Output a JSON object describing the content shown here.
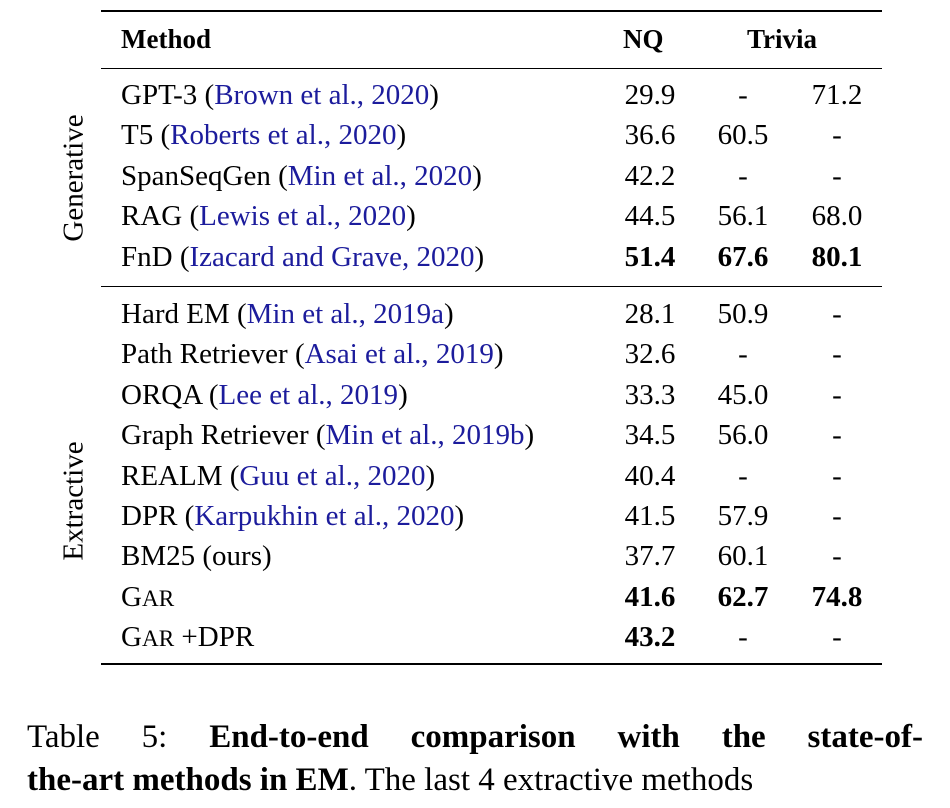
{
  "table": {
    "header": {
      "method": "Method",
      "nq": "NQ",
      "trivia": "Trivia"
    },
    "groups": {
      "generative": "Generative",
      "extractive": "Extractive"
    },
    "generative_rows": [
      {
        "name": "GPT-3 (",
        "cite": "Brown et al., 2020",
        "close": ")",
        "nq": "29.9",
        "trivia_open": "-",
        "trivia_wiki": "71.2"
      },
      {
        "name": "T5 (",
        "cite": "Roberts et al., 2020",
        "close": ")",
        "nq": "36.6",
        "trivia_open": "60.5",
        "trivia_wiki": "-"
      },
      {
        "name": "SpanSeqGen (",
        "cite": "Min et al., 2020",
        "close": ")",
        "nq": "42.2",
        "trivia_open": "-",
        "trivia_wiki": "-"
      },
      {
        "name": "RAG (",
        "cite": "Lewis et al., 2020",
        "close": ")",
        "nq": "44.5",
        "trivia_open": "56.1",
        "trivia_wiki": "68.0"
      },
      {
        "name": "FnD (",
        "cite": "Izacard and Grave, 2020",
        "close": ")",
        "nq": "51.4",
        "trivia_open": "67.6",
        "trivia_wiki": "80.1"
      }
    ],
    "extractive_rows": [
      {
        "name": "Hard EM (",
        "cite": "Min et al., 2019a",
        "close": ")",
        "nq": "28.1",
        "trivia_open": "50.9",
        "trivia_wiki": "-"
      },
      {
        "name": "Path Retriever (",
        "cite": "Asai et al., 2019",
        "close": ")",
        "nq": "32.6",
        "trivia_open": "-",
        "trivia_wiki": "-"
      },
      {
        "name": "ORQA (",
        "cite": "Lee et al., 2019",
        "close": ")",
        "nq": "33.3",
        "trivia_open": "45.0",
        "trivia_wiki": "-"
      },
      {
        "name": "Graph Retriever (",
        "cite": "Min et al., 2019b",
        "close": ")",
        "nq": "34.5",
        "trivia_open": "56.0",
        "trivia_wiki": "-"
      },
      {
        "name": "REALM (",
        "cite": "Guu et al., 2020",
        "close": ")",
        "nq": "40.4",
        "trivia_open": "-",
        "trivia_wiki": "-"
      },
      {
        "name": "DPR (",
        "cite": "Karpukhin et al., 2020",
        "close": ")",
        "nq": "41.5",
        "trivia_open": "57.9",
        "trivia_wiki": "-"
      },
      {
        "name": "BM25 (ours)",
        "cite": "",
        "close": "",
        "nq": "37.7",
        "trivia_open": "60.1",
        "trivia_wiki": "-"
      }
    ],
    "gar_rows": [
      {
        "g": "G",
        "ar": "AR",
        "suffix": "",
        "nq": "41.6",
        "trivia_open": "62.7",
        "trivia_wiki": "74.8"
      },
      {
        "g": "G",
        "ar": "AR",
        "suffix": " +DPR",
        "nq": "43.2",
        "trivia_open": "-",
        "trivia_wiki": "-"
      }
    ]
  },
  "caption": {
    "prefix": "Table 5: ",
    "bold_line1": "End-to-end comparison with the state-of-",
    "bold_line2": "the-art methods in EM",
    "rest": ". The last 4 extractive methods"
  }
}
